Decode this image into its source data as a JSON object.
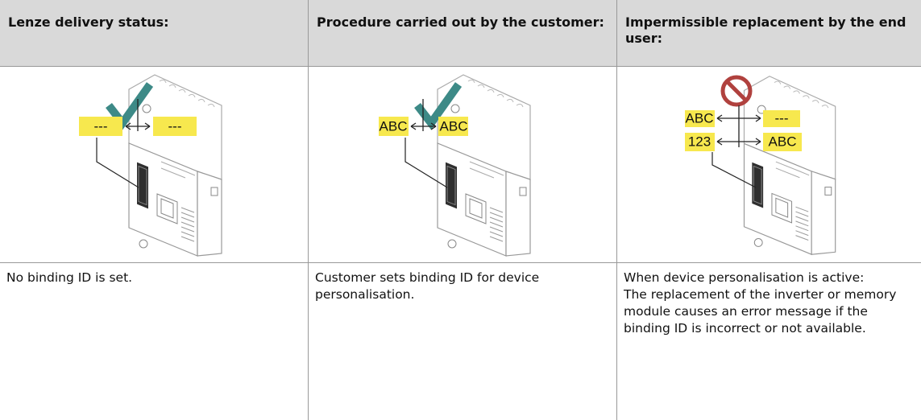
{
  "table": {
    "header": [
      "Lenze delivery status:",
      "Procedure carried out by the customer:",
      "Impermissible replacement by the end user:"
    ],
    "figures": [
      {
        "labels": [
          "---",
          "---"
        ]
      },
      {
        "labels": [
          "ABC",
          "ABC"
        ]
      },
      {
        "labels": [
          "ABC",
          "---",
          "123",
          "ABC"
        ]
      }
    ],
    "descriptions": [
      [
        "No binding ID is set."
      ],
      [
        "Customer sets binding ID for device personalisation."
      ],
      [
        "When device personalisation is active:",
        "The replacement of the inverter or memory module causes an error message if the binding ID is incorrect or not available."
      ]
    ]
  }
}
